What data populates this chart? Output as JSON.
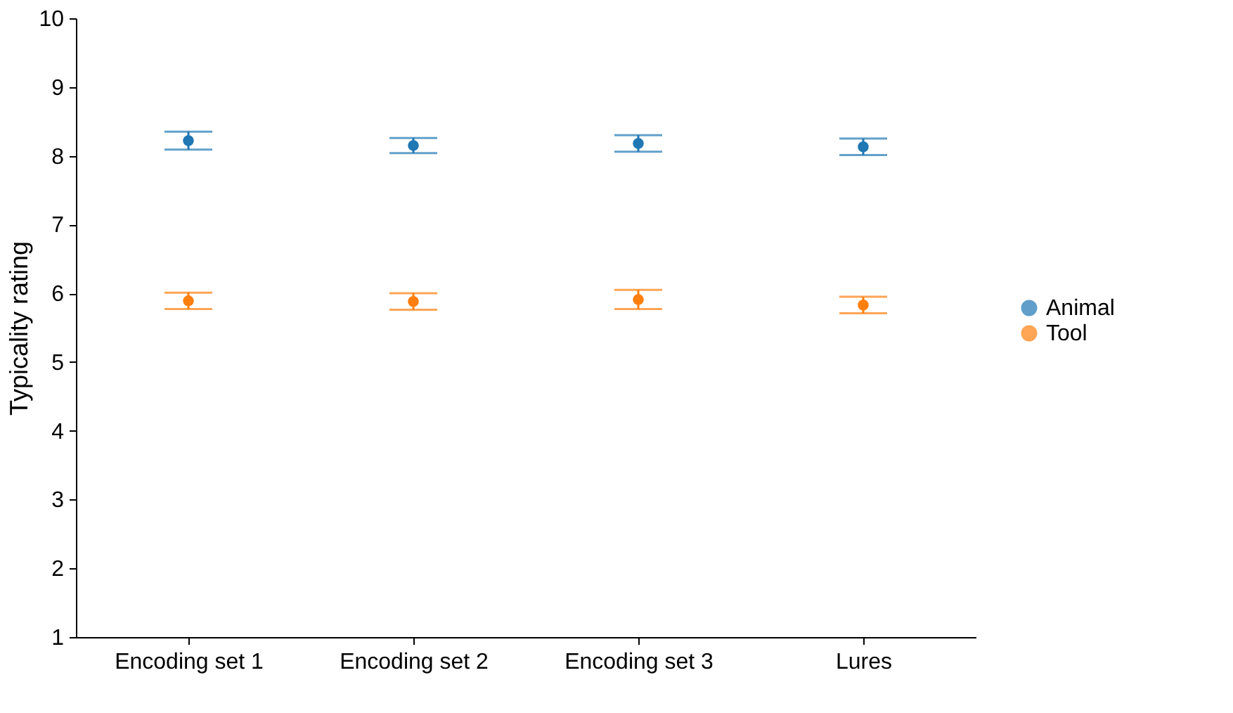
{
  "chart_data": {
    "type": "scatter",
    "ylabel": "Typicality rating",
    "categories": [
      "Encoding set 1",
      "Encoding set 2",
      "Encoding set 3",
      "Lures"
    ],
    "series": [
      {
        "name": "Animal",
        "color": "#1f77b4",
        "values": [
          8.22,
          8.15,
          8.18,
          8.13
        ],
        "errors": [
          0.13,
          0.11,
          0.12,
          0.12
        ]
      },
      {
        "name": "Tool",
        "color": "#ff7f0e",
        "values": [
          5.89,
          5.88,
          5.91,
          5.83
        ],
        "errors": [
          0.12,
          0.12,
          0.14,
          0.12
        ]
      }
    ],
    "ylim": [
      1,
      10
    ],
    "yticks": [
      1,
      2,
      3,
      4,
      5,
      6,
      7,
      8,
      9,
      10
    ],
    "grid": false,
    "legend": "right",
    "marker": "circle"
  }
}
